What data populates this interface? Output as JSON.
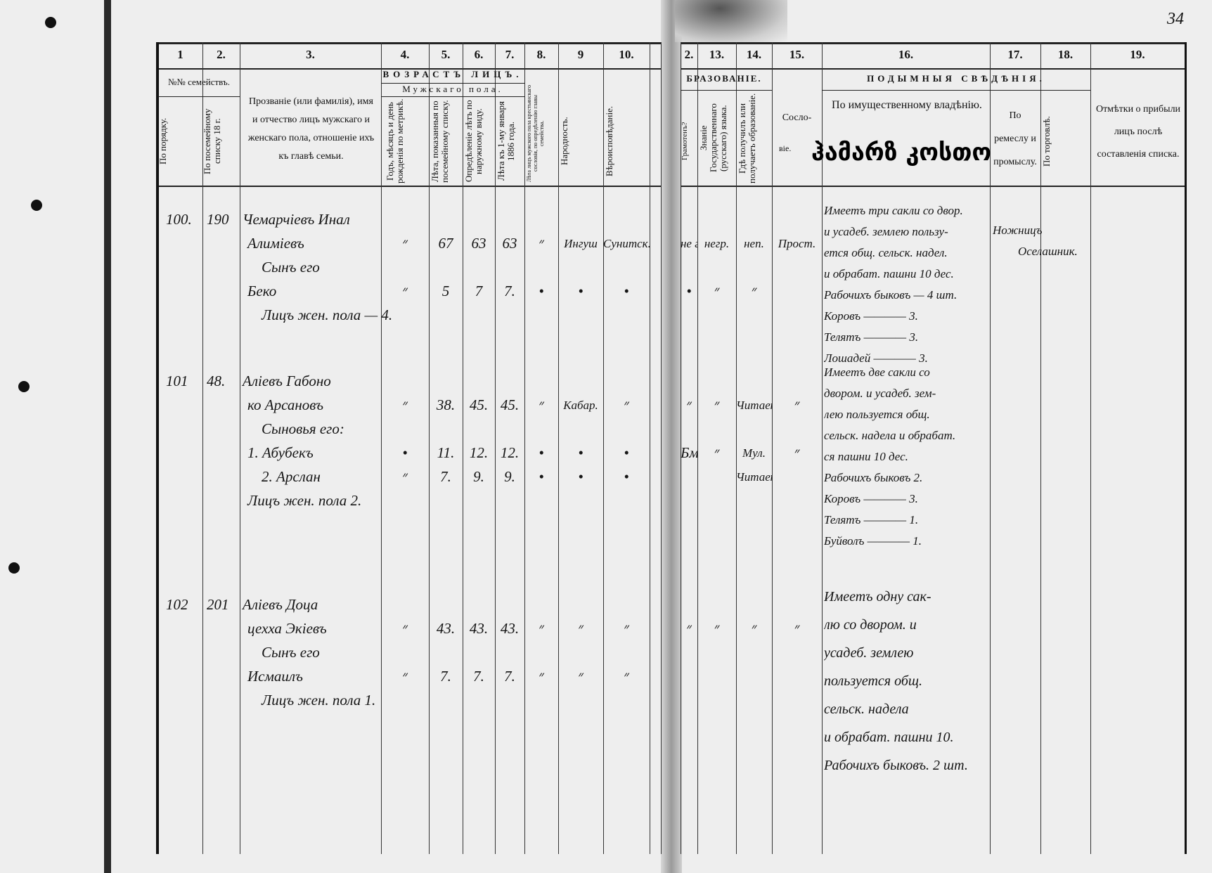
{
  "page_number": "34",
  "stamp_overlay": "ჰამარზ კოსთო",
  "column_numbers_left": [
    "1",
    "2.",
    "3.",
    "4.",
    "5.",
    "6.",
    "7.",
    "8.",
    "9",
    "10."
  ],
  "column_numbers_right": [
    "2.",
    "13.",
    "14.",
    "15.",
    "16.",
    "17.",
    "18.",
    "19."
  ],
  "group_headers": {
    "families": "№№ семействъ.",
    "age": "ВОЗРАСТЪ ЛИЦЪ.",
    "male": "Мужскаго пола.",
    "education": "БРАЗОВАНIЕ.",
    "tax": "ПОДЫМНЫЯ СВѢДѢНIЯ."
  },
  "column_headers": {
    "c1": "По порядку.",
    "c2": "По посемейному списку 18 г.",
    "c3": "Прозванiе (или фамилiя), имя и отчество лицъ мужскаго и женскаго пола, отношенiе ихъ къ главѣ семьи.",
    "c4": "Годъ, мѣсяцъ и день рожденiя по метрикѣ.",
    "c5": "Лѣта, показанныя по посемейному списку.",
    "c6": "Опредѣленiе лѣтъ по наружному виду.",
    "c7": "Лѣта къ 1-му января 1886 года.",
    "c8": "Лѣта лицъ мужского пола крестьянскаго сословiя, по опредѣленiю главы семейства.",
    "c9": "Народность.",
    "c10": "Вѣроисповѣданiе.",
    "c12": "Грамотенъ?",
    "c13": "Знанiе Государственнаго (русскаго) языка.",
    "c14": "Гдѣ получилъ или получаетъ образованiе.",
    "c15a": "Сосло-",
    "c15b": "вiе.",
    "c16": "По имущественному владѣнiю.",
    "c17": "По ремеслу и промыслу.",
    "c18": "По торговлѣ.",
    "c19": "Отмѣтки о прибыли лицъ послѣ составленiя списка."
  },
  "families": [
    {
      "order": "100.",
      "list_no": "190",
      "name_lines": [
        "Чемарчiевъ Инал",
        "Алимiевъ",
        "Сынъ его",
        "Беко",
        "Лицъ жен. пола — 4."
      ],
      "members": [
        {
          "c4": "״",
          "c5": "67",
          "c6": "63",
          "c7": "63",
          "c8": "״",
          "c9": "Ингуш",
          "c10": "Сунитск.",
          "c12": "не гр.",
          "c13": "негр.",
          "c14": "неп.",
          "c15": "Прост."
        },
        {
          "c4": "״",
          "c5": "5",
          "c6": "7",
          "c7": "7.",
          "c8": "•",
          "c9": "•",
          "c10": "•",
          "c12": "•",
          "c13": "״",
          "c14": "״"
        }
      ],
      "property_lines": [
        "Имеетъ три сакли со двор.",
        "и усадеб. землею пользу-",
        "ется общ. сельск. надел.",
        "и обрабат. пашни 10 дес.",
        "Рабочихъ быковъ — 4 шт.",
        "Коровъ ———— 3.",
        "Телятъ ———— 3.",
        "Лошадей ———— 3."
      ],
      "craft": "Ножницъ",
      "trade": "Оселашник."
    },
    {
      "order": "101",
      "list_no": "48.",
      "name_lines": [
        "Алiевъ Габоно",
        "ко Арсановъ",
        "Сыновья его:",
        "1. Абубекъ",
        "2. Арслан",
        "Лицъ жен. пола 2."
      ],
      "members": [
        {
          "c4": "״",
          "c5": "38.",
          "c6": "45.",
          "c7": "45.",
          "c8": "״",
          "c9": "Кабар.",
          "c10": "״",
          "c12": "״",
          "c13": "״",
          "c14": "Читаетъ",
          "c15": "״"
        },
        {
          "c4": "•",
          "c5": "11.",
          "c6": "12.",
          "c7": "12.",
          "c8": "•",
          "c9": "•",
          "c10": "•",
          "c12": "Бм.",
          "c13": "״",
          "c14": "Мул.",
          "c15": "״"
        },
        {
          "c4": "״",
          "c5": "7.",
          "c6": "9.",
          "c7": "9.",
          "c8": "•",
          "c9": "•",
          "c10": "•",
          "c12": "",
          "c13": "",
          "c14": "Читает.",
          "c15": ""
        }
      ],
      "property_lines": [
        "Имеетъ две сакли со",
        "двором. и усадеб. зем-",
        "лею пользуется общ.",
        "сельск. надела и обрабат.",
        "ся пашни 10 дес.",
        "Рабочихъ быковъ 2.",
        "Коровъ ———— 3.",
        "Телятъ ———— 1.",
        "Буйволъ ———— 1."
      ],
      "craft": "",
      "trade": ""
    },
    {
      "order": "102",
      "list_no": "201",
      "name_lines": [
        "Алiевъ Доца",
        "цехха Экiевъ",
        "Сынъ его",
        "Исмаилъ",
        "Лицъ жен. пола 1."
      ],
      "members": [
        {
          "c4": "״",
          "c5": "43.",
          "c6": "43.",
          "c7": "43.",
          "c8": "״",
          "c9": "״",
          "c10": "״",
          "c12": "״",
          "c13": "״",
          "c14": "״",
          "c15": "״"
        },
        {
          "c4": "״",
          "c5": "7.",
          "c6": "7.",
          "c7": "7.",
          "c8": "״",
          "c9": "״",
          "c10": "״",
          "c12": "",
          "c13": "",
          "c14": "",
          "c15": ""
        }
      ],
      "property_lines": [
        "Имеетъ одну сак-",
        "лю со двором. и",
        "усадеб. землею",
        "пользуется общ.",
        "сельск. надела",
        "и обрабат. пашни 10.",
        "Рабочихъ быковъ. 2 шт."
      ],
      "craft": "",
      "trade": ""
    }
  ]
}
